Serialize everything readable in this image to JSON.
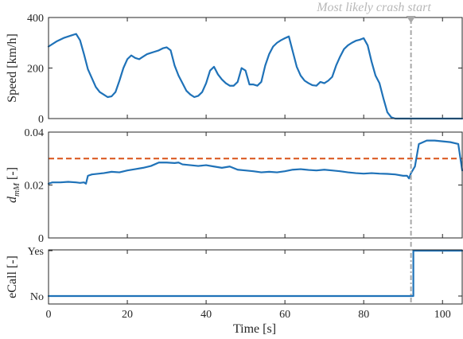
{
  "chart_data": [
    {
      "type": "line",
      "ylabel": "Speed [km/h]",
      "xlim": [
        0,
        105
      ],
      "ylim": [
        0,
        400
      ],
      "yticks": [
        0,
        200,
        400
      ],
      "grid": false,
      "series": [
        {
          "color": "#1f72b8",
          "x": [
            0,
            2,
            4,
            6,
            7,
            8,
            9,
            10,
            11,
            12,
            13,
            14,
            15,
            16,
            17,
            18,
            19,
            20,
            21,
            22,
            23,
            24,
            25,
            26,
            27,
            28,
            29,
            30,
            31,
            32,
            33,
            34,
            35,
            36,
            37,
            38,
            39,
            40,
            41,
            42,
            43,
            44,
            45,
            46,
            47,
            48,
            49,
            50,
            51,
            52,
            53,
            54,
            55,
            56,
            57,
            58,
            59,
            60,
            61,
            62,
            63,
            64,
            65,
            66,
            67,
            68,
            69,
            70,
            71,
            72,
            73,
            74,
            75,
            76,
            77,
            78,
            79,
            80,
            81,
            82,
            83,
            84,
            85,
            86,
            87,
            88,
            89,
            90,
            91,
            92,
            93,
            94,
            95,
            96,
            98,
            100,
            102,
            104,
            105
          ],
          "y": [
            285,
            305,
            320,
            330,
            335,
            310,
            255,
            195,
            160,
            125,
            105,
            95,
            85,
            88,
            105,
            150,
            200,
            235,
            250,
            240,
            235,
            245,
            255,
            260,
            265,
            270,
            278,
            282,
            270,
            210,
            170,
            140,
            110,
            95,
            85,
            90,
            105,
            140,
            190,
            205,
            175,
            155,
            140,
            130,
            130,
            145,
            200,
            190,
            135,
            135,
            130,
            145,
            210,
            255,
            285,
            300,
            310,
            318,
            325,
            265,
            205,
            170,
            150,
            140,
            132,
            130,
            145,
            140,
            150,
            165,
            210,
            245,
            275,
            290,
            300,
            308,
            312,
            318,
            290,
            225,
            170,
            140,
            80,
            25,
            5,
            0,
            0,
            0,
            0,
            0,
            0,
            0,
            0,
            0,
            0,
            0,
            0,
            0,
            0
          ]
        }
      ]
    },
    {
      "type": "line",
      "ylabel": "d",
      "ylabel_subscript": "mM",
      "ylabel_unit": "[-]",
      "xlim": [
        0,
        105
      ],
      "ylim": [
        0,
        0.04
      ],
      "yticks": [
        0,
        0.02,
        0.04
      ],
      "grid": false,
      "threshold": 0.03,
      "series": [
        {
          "color": "#1f72b8",
          "x": [
            0,
            1,
            3,
            5,
            7,
            8,
            9,
            9.5,
            10,
            11,
            14,
            16,
            18,
            20,
            22,
            24,
            26,
            28,
            30,
            32,
            33,
            34,
            36,
            38,
            40,
            42,
            44,
            46,
            48,
            50,
            52,
            54,
            56,
            58,
            60,
            62,
            64,
            66,
            68,
            70,
            72,
            74,
            76,
            78,
            80,
            82,
            84,
            86,
            88,
            90,
            91,
            91.5,
            92,
            93,
            94,
            96,
            98,
            100,
            102,
            104,
            105
          ],
          "y": [
            0.0205,
            0.021,
            0.021,
            0.0212,
            0.021,
            0.0208,
            0.021,
            0.0205,
            0.0235,
            0.024,
            0.0245,
            0.025,
            0.0248,
            0.0255,
            0.026,
            0.0265,
            0.0272,
            0.0285,
            0.0285,
            0.0283,
            0.0285,
            0.0278,
            0.0275,
            0.0272,
            0.0275,
            0.027,
            0.0265,
            0.027,
            0.0258,
            0.0255,
            0.0252,
            0.0248,
            0.025,
            0.0248,
            0.0252,
            0.0258,
            0.026,
            0.0257,
            0.0255,
            0.0258,
            0.0255,
            0.0252,
            0.0248,
            0.0245,
            0.0243,
            0.0245,
            0.0243,
            0.0242,
            0.024,
            0.0235,
            0.0235,
            0.0225,
            0.0245,
            0.027,
            0.0355,
            0.0368,
            0.0368,
            0.0365,
            0.0362,
            0.0355,
            0.0255
          ]
        }
      ]
    },
    {
      "type": "line",
      "ylabel": "eCall [-]",
      "xlabel": "Time [s]",
      "xlim": [
        0,
        105
      ],
      "ylim": [
        0,
        1
      ],
      "ytick_labels": [
        "No",
        "Yes"
      ],
      "xticks": [
        0,
        20,
        40,
        60,
        80,
        100
      ],
      "grid": false,
      "series": [
        {
          "color": "#1f72b8",
          "x": [
            0,
            92.6,
            92.6,
            105
          ],
          "y": [
            0,
            0,
            1,
            1
          ]
        }
      ]
    }
  ],
  "crash_marker": {
    "x": 92,
    "label": "Most likely crash start",
    "color": "#a8a8a8"
  },
  "threshold_color": "#d95319"
}
